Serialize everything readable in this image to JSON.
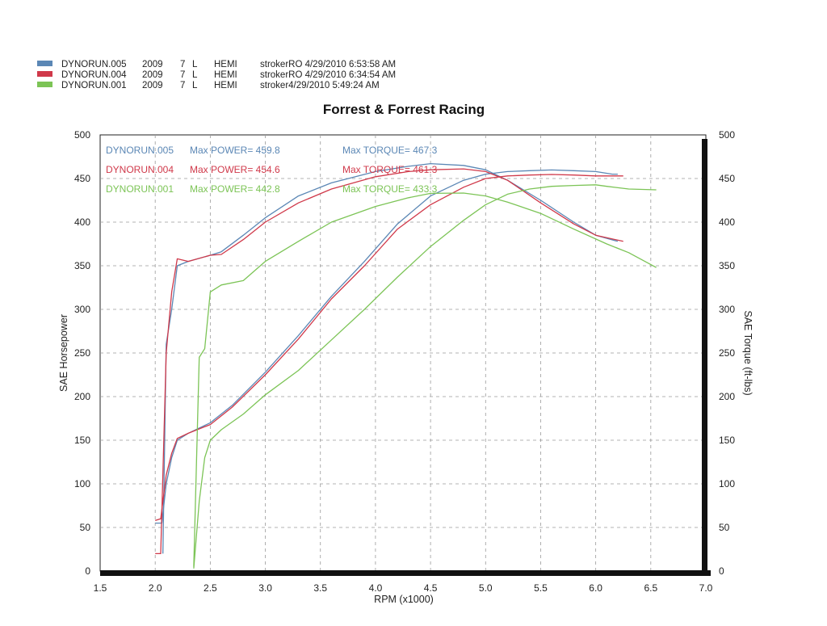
{
  "legend": [
    {
      "name": "DYNORUN.005",
      "year": "2009",
      "size": "7",
      "unit": "L",
      "engine": "HEMI",
      "info": "strokerRO  4/29/2010 6:53:58 AM",
      "color": "#5b87b5"
    },
    {
      "name": "DYNORUN.004",
      "year": "2009",
      "size": "7",
      "unit": "L",
      "engine": "HEMI",
      "info": "strokerRO  4/29/2010 6:34:54 AM",
      "color": "#d0394a"
    },
    {
      "name": "DYNORUN.001",
      "year": "2009",
      "size": "7",
      "unit": "L",
      "engine": "HEMI",
      "info": "stroker4/29/2010 5:49:24 AM",
      "color": "#7cc456"
    }
  ],
  "annotations": [
    {
      "run": "DYNORUN.005",
      "power": "Max POWER= 459.8",
      "torque": "Max TORQUE= 467.3",
      "color": "#5b87b5"
    },
    {
      "run": "DYNORUN.004",
      "power": "Max POWER= 454.6",
      "torque": "Max TORQUE= 461.3",
      "color": "#d0394a"
    },
    {
      "run": "DYNORUN.001",
      "power": "Max POWER= 442.8",
      "torque": "Max TORQUE= 433.3",
      "color": "#7cc456"
    }
  ],
  "chart_data": {
    "type": "line",
    "title": "Forrest & Forrest Racing",
    "xlabel": "RPM (x1000)",
    "ylabel": "SAE Horsepower",
    "y2label": "SAE Torque (ft-lbs)",
    "xlim": [
      1.5,
      7.0
    ],
    "ylim": [
      0,
      500
    ],
    "y2lim": [
      0,
      500
    ],
    "xticks": [
      "1.5",
      "2.0",
      "2.5",
      "3.0",
      "3.5",
      "4.0",
      "4.5",
      "5.0",
      "5.5",
      "6.0",
      "6.5",
      "7.0"
    ],
    "yticks": [
      "0",
      "50",
      "100",
      "150",
      "200",
      "250",
      "300",
      "350",
      "400",
      "450",
      "500"
    ],
    "grid": true,
    "series": [
      {
        "name": "DYNORUN.005",
        "quantity": "power",
        "color": "#5b87b5",
        "x": [
          2.0,
          2.06,
          2.1,
          2.15,
          2.2,
          2.3,
          2.5,
          2.7,
          3.0,
          3.3,
          3.6,
          3.9,
          4.2,
          4.5,
          4.8,
          5.0,
          5.2,
          5.4,
          5.6,
          5.8,
          6.0,
          6.15,
          6.2
        ],
        "y": [
          55,
          55,
          100,
          130,
          150,
          158,
          170,
          190,
          228,
          270,
          315,
          355,
          398,
          430,
          448,
          455,
          458,
          459,
          459.8,
          459,
          458,
          455,
          455
        ]
      },
      {
        "name": "DYNORUN.005",
        "quantity": "torque",
        "color": "#5b87b5",
        "x": [
          2.07,
          2.1,
          2.15,
          2.2,
          2.3,
          2.5,
          2.6,
          2.8,
          3.0,
          3.3,
          3.6,
          4.0,
          4.3,
          4.5,
          4.8,
          5.0,
          5.2,
          5.5,
          5.8,
          6.0,
          6.2
        ],
        "y": [
          20,
          260,
          300,
          350,
          355,
          362,
          366,
          385,
          405,
          430,
          445,
          458,
          464,
          467,
          465,
          460,
          448,
          425,
          400,
          385,
          378
        ]
      },
      {
        "name": "DYNORUN.004",
        "quantity": "power",
        "color": "#d0394a",
        "x": [
          2.0,
          2.05,
          2.1,
          2.15,
          2.2,
          2.3,
          2.5,
          2.7,
          3.0,
          3.3,
          3.6,
          3.9,
          4.2,
          4.5,
          4.8,
          5.0,
          5.2,
          5.4,
          5.6,
          5.8,
          6.0,
          6.15,
          6.25
        ],
        "y": [
          58,
          60,
          110,
          135,
          152,
          158,
          168,
          188,
          225,
          266,
          312,
          350,
          392,
          420,
          440,
          450,
          453,
          454,
          454.6,
          454,
          453,
          453,
          453
        ]
      },
      {
        "name": "DYNORUN.004",
        "quantity": "torque",
        "color": "#d0394a",
        "x": [
          2.0,
          2.05,
          2.1,
          2.15,
          2.2,
          2.3,
          2.5,
          2.6,
          2.8,
          3.0,
          3.3,
          3.6,
          4.0,
          4.3,
          4.5,
          4.8,
          5.0,
          5.2,
          5.5,
          5.8,
          6.0,
          6.25
        ],
        "y": [
          20,
          20,
          250,
          320,
          358,
          355,
          362,
          363,
          380,
          400,
          422,
          438,
          452,
          458,
          460,
          461,
          458,
          448,
          422,
          398,
          385,
          378
        ]
      },
      {
        "name": "DYNORUN.001",
        "quantity": "power",
        "color": "#7cc456",
        "x": [
          2.35,
          2.4,
          2.45,
          2.5,
          2.6,
          2.8,
          3.0,
          3.3,
          3.6,
          3.9,
          4.2,
          4.5,
          4.8,
          5.0,
          5.2,
          5.4,
          5.6,
          5.8,
          6.0,
          6.1,
          6.3,
          6.55
        ],
        "y": [
          3,
          80,
          130,
          150,
          162,
          180,
          202,
          230,
          265,
          300,
          337,
          372,
          402,
          420,
          432,
          438,
          441,
          442,
          442.8,
          441,
          438,
          437
        ]
      },
      {
        "name": "DYNORUN.001",
        "quantity": "torque",
        "color": "#7cc456",
        "x": [
          2.35,
          2.4,
          2.45,
          2.5,
          2.6,
          2.8,
          3.0,
          3.3,
          3.6,
          4.0,
          4.3,
          4.5,
          4.8,
          5.0,
          5.2,
          5.5,
          5.8,
          6.1,
          6.3,
          6.55
        ],
        "y": [
          5,
          245,
          255,
          320,
          328,
          333,
          355,
          378,
          400,
          418,
          428,
          433,
          433.3,
          430,
          423,
          410,
          392,
          375,
          365,
          348
        ]
      }
    ]
  }
}
